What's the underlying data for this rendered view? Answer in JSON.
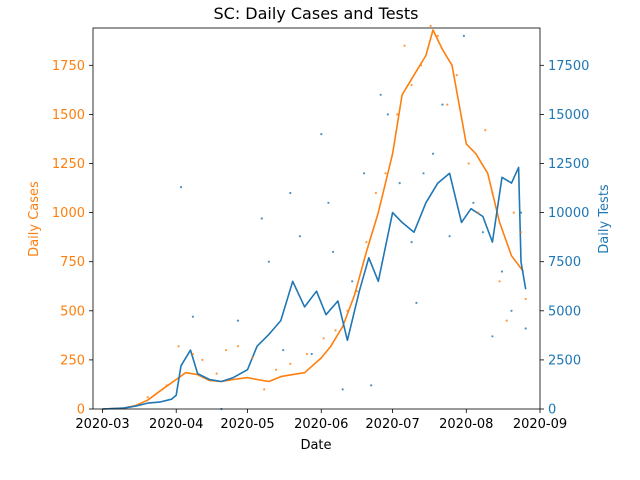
{
  "chart_data": {
    "type": "line",
    "title": "SC: Daily Cases and Tests",
    "xlabel": "Date",
    "x_tick_labels": [
      "2020-03",
      "2020-04",
      "2020-05",
      "2020-06",
      "2020-07",
      "2020-08",
      "2020-09"
    ],
    "x_tick_dates": [
      "2020-03-01",
      "2020-04-01",
      "2020-05-01",
      "2020-06-01",
      "2020-07-01",
      "2020-08-01",
      "2020-09-01"
    ],
    "xlim": [
      "2020-02-26",
      "2020-09-01"
    ],
    "left_axis": {
      "label": "Daily Cases",
      "color": "#ff7f0e",
      "ylim": [
        0,
        1940
      ],
      "ticks": [
        0,
        250,
        500,
        750,
        1000,
        1250,
        1500,
        1750
      ]
    },
    "right_axis": {
      "label": "Daily Tests",
      "color": "#1f77b4",
      "ylim": [
        0,
        19400
      ],
      "ticks": [
        0,
        2500,
        5000,
        7500,
        10000,
        12500,
        15000,
        17500
      ]
    },
    "series": [
      {
        "axis": "left",
        "color": "#ff7f0e",
        "style": "line",
        "points": [
          [
            "2020-03-01",
            0
          ],
          [
            "2020-03-10",
            5
          ],
          [
            "2020-03-15",
            18
          ],
          [
            "2020-03-20",
            45
          ],
          [
            "2020-03-25",
            90
          ],
          [
            "2020-04-01",
            150
          ],
          [
            "2020-04-05",
            185
          ],
          [
            "2020-04-10",
            175
          ],
          [
            "2020-04-15",
            145
          ],
          [
            "2020-04-20",
            140
          ],
          [
            "2020-04-25",
            150
          ],
          [
            "2020-05-01",
            160
          ],
          [
            "2020-05-05",
            150
          ],
          [
            "2020-05-10",
            140
          ],
          [
            "2020-05-15",
            165
          ],
          [
            "2020-05-20",
            175
          ],
          [
            "2020-05-25",
            185
          ],
          [
            "2020-06-01",
            260
          ],
          [
            "2020-06-05",
            320
          ],
          [
            "2020-06-10",
            420
          ],
          [
            "2020-06-15",
            580
          ],
          [
            "2020-06-20",
            800
          ],
          [
            "2020-06-25",
            1000
          ],
          [
            "2020-07-01",
            1300
          ],
          [
            "2020-07-05",
            1600
          ],
          [
            "2020-07-10",
            1700
          ],
          [
            "2020-07-15",
            1800
          ],
          [
            "2020-07-18",
            1930
          ],
          [
            "2020-07-22",
            1830
          ],
          [
            "2020-07-26",
            1750
          ],
          [
            "2020-08-01",
            1350
          ],
          [
            "2020-08-05",
            1300
          ],
          [
            "2020-08-10",
            1200
          ],
          [
            "2020-08-15",
            950
          ],
          [
            "2020-08-20",
            780
          ],
          [
            "2020-08-25",
            700
          ]
        ]
      },
      {
        "axis": "right",
        "color": "#1f77b4",
        "style": "line",
        "points": [
          [
            "2020-03-01",
            0
          ],
          [
            "2020-03-10",
            50
          ],
          [
            "2020-03-15",
            150
          ],
          [
            "2020-03-20",
            300
          ],
          [
            "2020-03-25",
            350
          ],
          [
            "2020-03-30",
            500
          ],
          [
            "2020-04-01",
            700
          ],
          [
            "2020-04-03",
            2200
          ],
          [
            "2020-04-07",
            3000
          ],
          [
            "2020-04-10",
            1800
          ],
          [
            "2020-04-15",
            1500
          ],
          [
            "2020-04-20",
            1400
          ],
          [
            "2020-04-25",
            1600
          ],
          [
            "2020-05-01",
            2000
          ],
          [
            "2020-05-05",
            3200
          ],
          [
            "2020-05-10",
            3800
          ],
          [
            "2020-05-15",
            4500
          ],
          [
            "2020-05-20",
            6500
          ],
          [
            "2020-05-25",
            5200
          ],
          [
            "2020-05-30",
            6000
          ],
          [
            "2020-06-03",
            4800
          ],
          [
            "2020-06-08",
            5500
          ],
          [
            "2020-06-12",
            3500
          ],
          [
            "2020-06-17",
            6000
          ],
          [
            "2020-06-21",
            7700
          ],
          [
            "2020-06-25",
            6500
          ],
          [
            "2020-07-01",
            10000
          ],
          [
            "2020-07-05",
            9500
          ],
          [
            "2020-07-10",
            9000
          ],
          [
            "2020-07-15",
            10500
          ],
          [
            "2020-07-20",
            11500
          ],
          [
            "2020-07-25",
            12000
          ],
          [
            "2020-07-30",
            9500
          ],
          [
            "2020-08-03",
            10200
          ],
          [
            "2020-08-08",
            9800
          ],
          [
            "2020-08-12",
            8500
          ],
          [
            "2020-08-16",
            11800
          ],
          [
            "2020-08-20",
            11500
          ],
          [
            "2020-08-23",
            12300
          ],
          [
            "2020-08-24",
            7500
          ],
          [
            "2020-08-26",
            6100
          ]
        ]
      },
      {
        "axis": "left",
        "color": "#ff7f0e",
        "style": "scatter",
        "points": [
          [
            "2020-03-20",
            60
          ],
          [
            "2020-03-28",
            120
          ],
          [
            "2020-04-02",
            320
          ],
          [
            "2020-04-08",
            280
          ],
          [
            "2020-04-12",
            250
          ],
          [
            "2020-04-18",
            180
          ],
          [
            "2020-04-22",
            300
          ],
          [
            "2020-04-27",
            320
          ],
          [
            "2020-05-03",
            260
          ],
          [
            "2020-05-08",
            100
          ],
          [
            "2020-05-13",
            200
          ],
          [
            "2020-05-19",
            230
          ],
          [
            "2020-05-26",
            280
          ],
          [
            "2020-06-02",
            360
          ],
          [
            "2020-06-07",
            400
          ],
          [
            "2020-06-12",
            500
          ],
          [
            "2020-06-16",
            600
          ],
          [
            "2020-06-20",
            850
          ],
          [
            "2020-06-24",
            1100
          ],
          [
            "2020-06-28",
            1200
          ],
          [
            "2020-07-03",
            1500
          ],
          [
            "2020-07-06",
            1850
          ],
          [
            "2020-07-09",
            1650
          ],
          [
            "2020-07-13",
            1750
          ],
          [
            "2020-07-17",
            1950
          ],
          [
            "2020-07-20",
            1900
          ],
          [
            "2020-07-24",
            1550
          ],
          [
            "2020-07-28",
            1700
          ],
          [
            "2020-08-02",
            1250
          ],
          [
            "2020-08-06",
            1000
          ],
          [
            "2020-08-09",
            1420
          ],
          [
            "2020-08-12",
            1100
          ],
          [
            "2020-08-15",
            650
          ],
          [
            "2020-08-18",
            450
          ],
          [
            "2020-08-21",
            1000
          ],
          [
            "2020-08-24",
            900
          ],
          [
            "2020-08-26",
            560
          ]
        ]
      },
      {
        "axis": "right",
        "color": "#1f77b4",
        "style": "scatter",
        "points": [
          [
            "2020-04-03",
            11300
          ],
          [
            "2020-04-08",
            4700
          ],
          [
            "2020-04-20",
            0
          ],
          [
            "2020-04-27",
            4500
          ],
          [
            "2020-05-07",
            9700
          ],
          [
            "2020-05-10",
            7500
          ],
          [
            "2020-05-16",
            3000
          ],
          [
            "2020-05-19",
            11000
          ],
          [
            "2020-05-23",
            8800
          ],
          [
            "2020-05-28",
            2800
          ],
          [
            "2020-06-01",
            14000
          ],
          [
            "2020-06-04",
            10500
          ],
          [
            "2020-06-06",
            8000
          ],
          [
            "2020-06-10",
            1000
          ],
          [
            "2020-06-14",
            6500
          ],
          [
            "2020-06-19",
            12000
          ],
          [
            "2020-06-22",
            1200
          ],
          [
            "2020-06-26",
            16000
          ],
          [
            "2020-06-29",
            15000
          ],
          [
            "2020-07-04",
            11500
          ],
          [
            "2020-07-09",
            8500
          ],
          [
            "2020-07-11",
            5400
          ],
          [
            "2020-07-14",
            12000
          ],
          [
            "2020-07-18",
            13000
          ],
          [
            "2020-07-22",
            15500
          ],
          [
            "2020-07-25",
            8800
          ],
          [
            "2020-07-31",
            19000
          ],
          [
            "2020-08-04",
            10500
          ],
          [
            "2020-08-08",
            9000
          ],
          [
            "2020-08-12",
            3700
          ],
          [
            "2020-08-16",
            7000
          ],
          [
            "2020-08-20",
            5000
          ],
          [
            "2020-08-24",
            10000
          ],
          [
            "2020-08-26",
            4100
          ]
        ]
      }
    ]
  }
}
